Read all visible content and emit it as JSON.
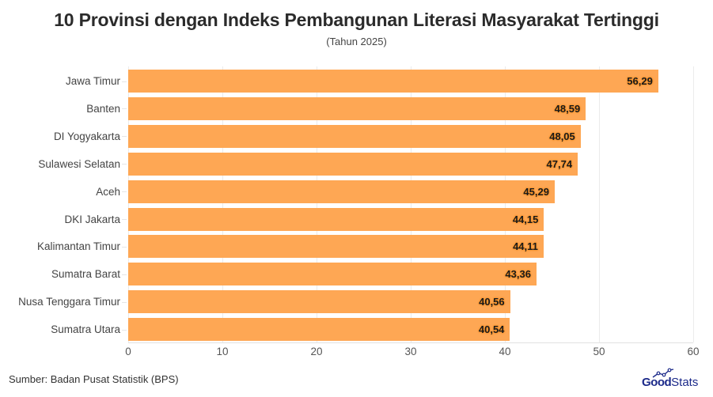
{
  "title": "10 Provinsi dengan Indeks Pembangunan Literasi Masyarakat Tertinggi",
  "subtitle": "(Tahun 2025)",
  "source": "Sumber: Badan Pusat Statistik (BPS)",
  "logo": {
    "good": "Good",
    "stats": "Stats",
    "icon": "line-chart-icon"
  },
  "colors": {
    "bar": "#fea754",
    "label_outline": "#f08a1c",
    "logo": "#1c2a8a"
  },
  "x_ticks": [
    "0",
    "10",
    "20",
    "30",
    "40",
    "50",
    "60"
  ],
  "bars": [
    {
      "label": "Jawa Timur",
      "value_label": "56,29"
    },
    {
      "label": "Banten",
      "value_label": "48,59"
    },
    {
      "label": "DI Yogyakarta",
      "value_label": "48,05"
    },
    {
      "label": "Sulawesi Selatan",
      "value_label": "47,74"
    },
    {
      "label": "Aceh",
      "value_label": "45,29"
    },
    {
      "label": "DKI Jakarta",
      "value_label": "44,15"
    },
    {
      "label": "Kalimantan Timur",
      "value_label": "44,11"
    },
    {
      "label": "Sumatra Barat",
      "value_label": "43,36"
    },
    {
      "label": "Nusa Tenggara Timur",
      "value_label": "40,56"
    },
    {
      "label": "Sumatra Utara",
      "value_label": "40,54"
    }
  ],
  "chart_data": {
    "type": "bar",
    "orientation": "horizontal",
    "title": "10 Provinsi dengan Indeks Pembangunan Literasi Masyarakat Tertinggi",
    "subtitle": "(Tahun 2025)",
    "categories": [
      "Jawa Timur",
      "Banten",
      "DI Yogyakarta",
      "Sulawesi Selatan",
      "Aceh",
      "DKI Jakarta",
      "Kalimantan Timur",
      "Sumatra Barat",
      "Nusa Tenggara Timur",
      "Sumatra Utara"
    ],
    "values": [
      56.29,
      48.59,
      48.05,
      47.74,
      45.29,
      44.15,
      44.11,
      43.36,
      40.56,
      40.54
    ],
    "xlabel": "",
    "ylabel": "",
    "xlim": [
      0,
      60
    ],
    "x_ticks": [
      0,
      10,
      20,
      30,
      40,
      50,
      60
    ],
    "grid": true,
    "legend": "none",
    "data_labels": true,
    "source": "Sumber: Badan Pusat Statistik (BPS)"
  }
}
